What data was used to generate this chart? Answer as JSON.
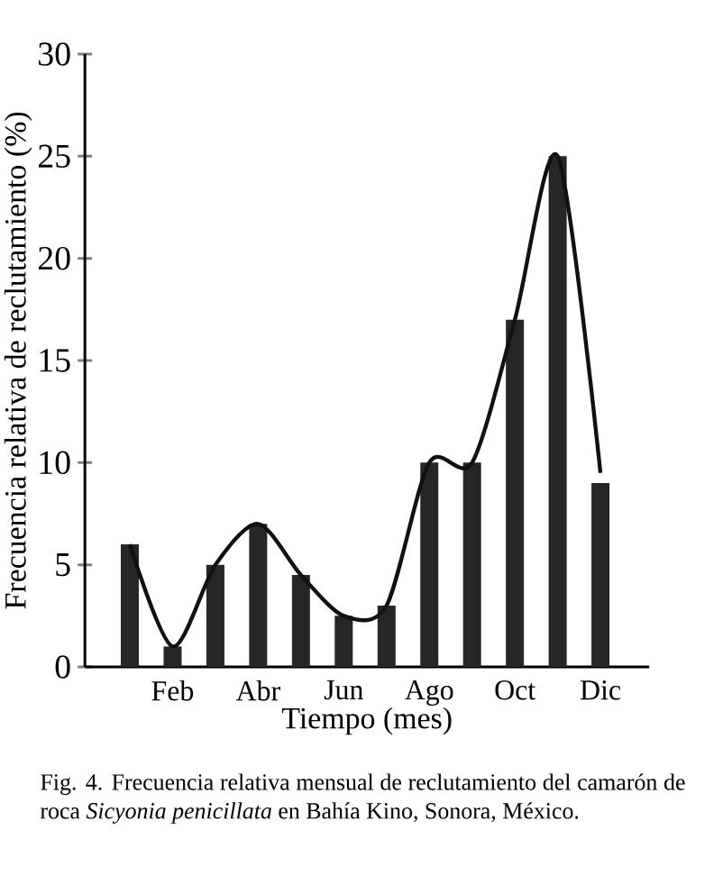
{
  "chart_data": {
    "type": "bar",
    "categories": [
      null,
      "Feb",
      null,
      "Abr",
      null,
      "Jun",
      null,
      "Ago",
      null,
      "Oct",
      null,
      "Dic"
    ],
    "series": [
      {
        "color": "#262626",
        "values": [
          6,
          1,
          5,
          7,
          4.5,
          2.5,
          3,
          10,
          10,
          17,
          25,
          9
        ]
      },
      {
        "type": "line",
        "color": "#111111",
        "values": [
          6,
          1,
          5,
          7,
          4.5,
          2.5,
          3,
          10,
          10,
          17,
          25,
          9.5
        ]
      }
    ],
    "xlabel": "Tiempo (mes)",
    "ylabel": "Frecuencia relativa de reclutamiento (%)",
    "ylim": [
      0,
      30
    ],
    "yticks": [
      0,
      5,
      10,
      15,
      20,
      25,
      30
    ],
    "grid": false,
    "annotations": [
      "Fig. 4.  Frecuencia relativa mensual de reclutamiento del camarón de roca *Sicyonia penicillata* en Bahía Kino, Sonora, México."
    ]
  }
}
